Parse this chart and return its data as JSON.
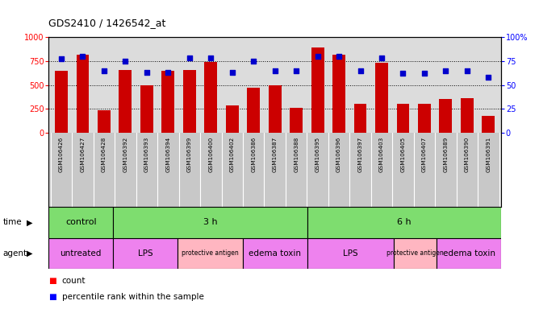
{
  "title": "GDS2410 / 1426542_at",
  "samples": [
    "GSM106426",
    "GSM106427",
    "GSM106428",
    "GSM106392",
    "GSM106393",
    "GSM106394",
    "GSM106399",
    "GSM106400",
    "GSM106402",
    "GSM106386",
    "GSM106387",
    "GSM106388",
    "GSM106395",
    "GSM106396",
    "GSM106397",
    "GSM106403",
    "GSM106405",
    "GSM106407",
    "GSM106389",
    "GSM106390",
    "GSM106391"
  ],
  "counts": [
    650,
    820,
    240,
    660,
    500,
    650,
    660,
    740,
    290,
    470,
    500,
    260,
    890,
    820,
    300,
    730,
    300,
    300,
    355,
    360,
    175
  ],
  "percentiles": [
    77,
    80,
    65,
    75,
    63,
    63,
    78,
    78,
    63,
    75,
    65,
    65,
    80,
    80,
    65,
    78,
    62,
    62,
    65,
    65,
    58
  ],
  "time_groups": [
    {
      "label": "control",
      "start": 0,
      "end": 3,
      "color": "#7EDD6F"
    },
    {
      "label": "3 h",
      "start": 3,
      "end": 12,
      "color": "#7EDD6F"
    },
    {
      "label": "6 h",
      "start": 12,
      "end": 21,
      "color": "#7EDD6F"
    }
  ],
  "agent_groups": [
    {
      "label": "untreated",
      "start": 0,
      "end": 3,
      "color": "#EE82EE"
    },
    {
      "label": "LPS",
      "start": 3,
      "end": 6,
      "color": "#EE82EE"
    },
    {
      "label": "protective antigen",
      "start": 6,
      "end": 9,
      "color": "#FFB6C1"
    },
    {
      "label": "edema toxin",
      "start": 9,
      "end": 12,
      "color": "#EE82EE"
    },
    {
      "label": "LPS",
      "start": 12,
      "end": 16,
      "color": "#EE82EE"
    },
    {
      "label": "protective antigen",
      "start": 16,
      "end": 18,
      "color": "#FFB6C1"
    },
    {
      "label": "edema toxin",
      "start": 18,
      "end": 21,
      "color": "#EE82EE"
    }
  ],
  "bar_color": "#CC0000",
  "dot_color": "#0000CC",
  "left_ylim": [
    0,
    1000
  ],
  "right_ylim": [
    0,
    100
  ],
  "left_yticks": [
    0,
    250,
    500,
    750,
    1000
  ],
  "right_yticks": [
    0,
    25,
    50,
    75,
    100
  ],
  "plot_bg_color": "#DCDCDC",
  "label_bg_color": "#C8C8C8",
  "fig_width": 6.68,
  "fig_height": 3.84
}
